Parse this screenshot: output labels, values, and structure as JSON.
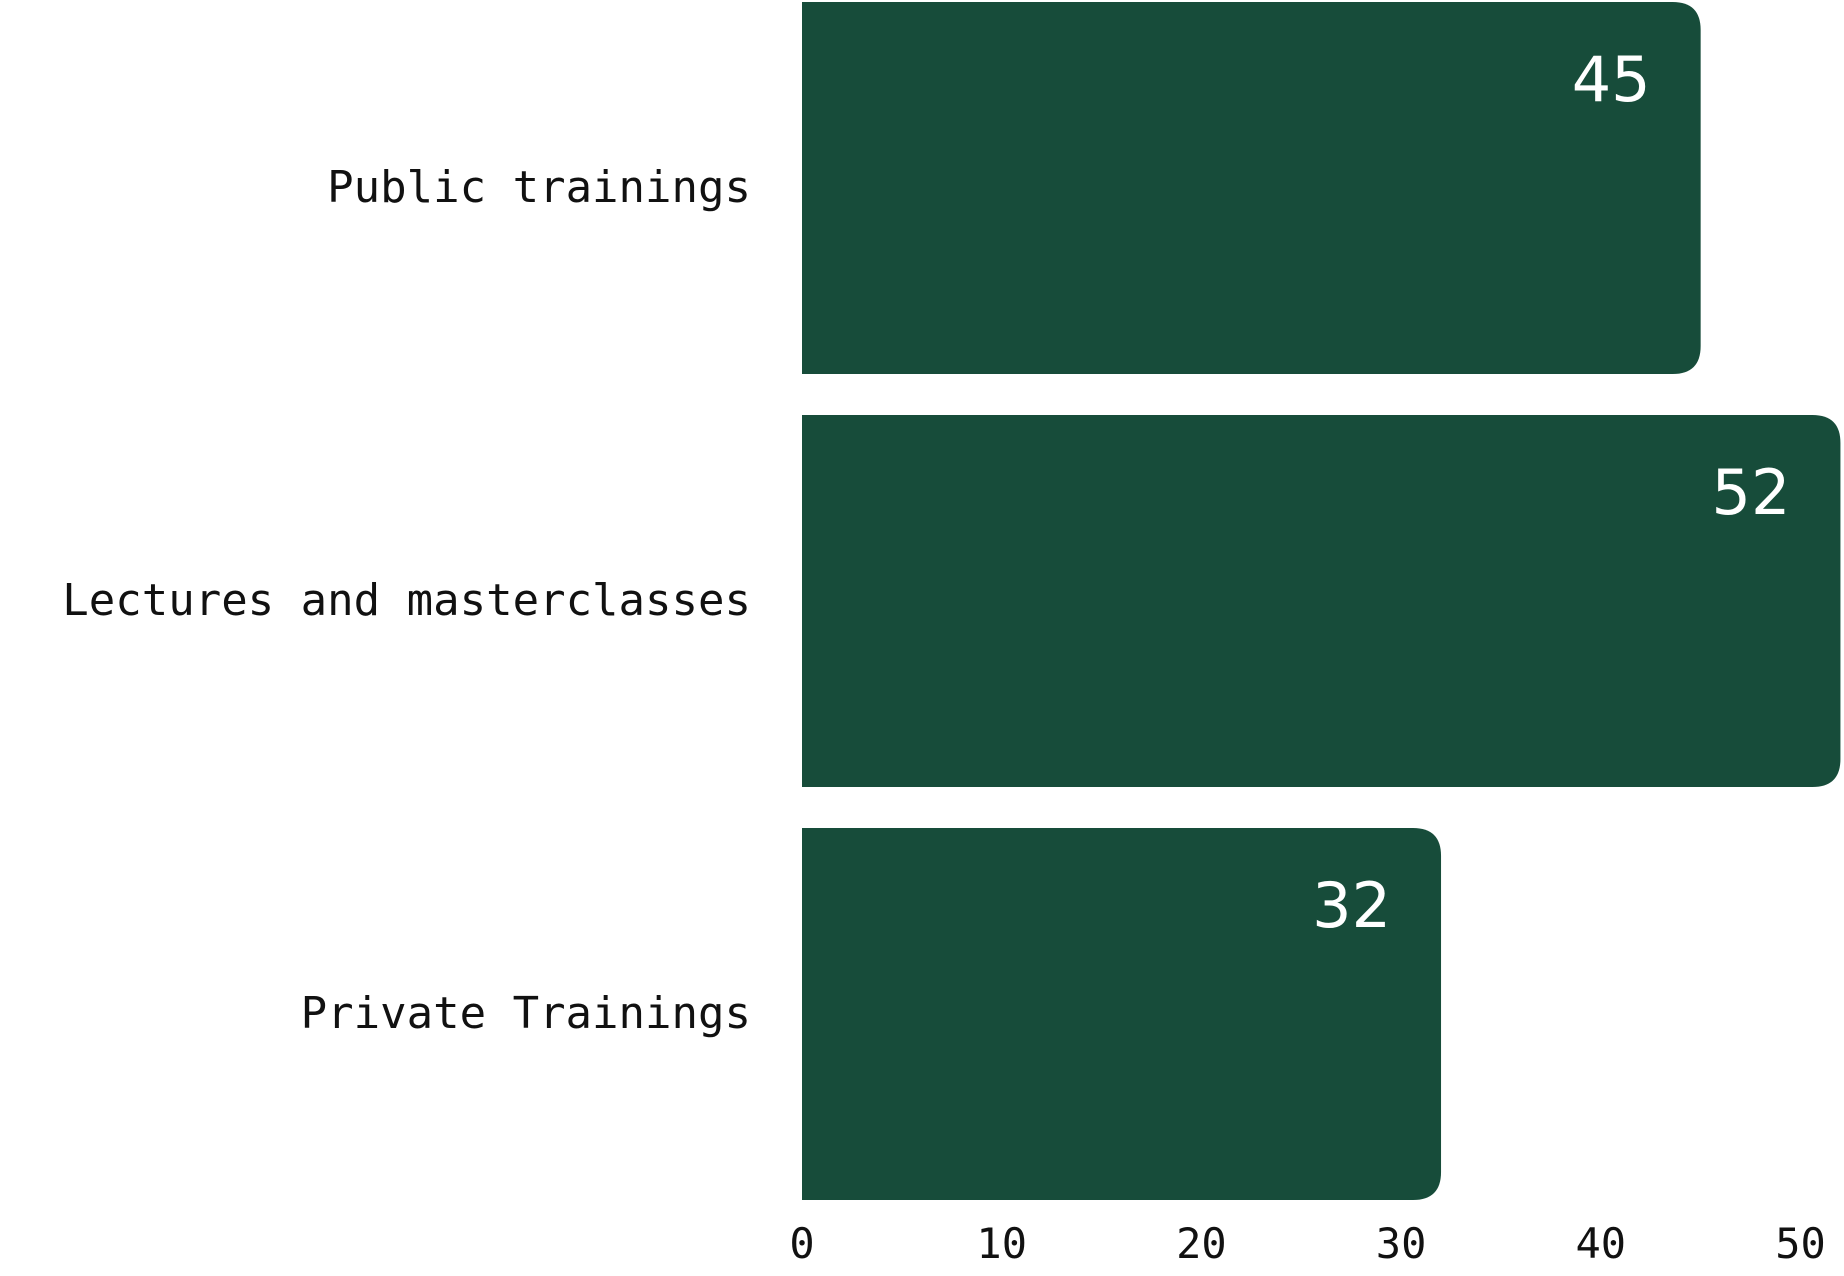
{
  "chart_data": {
    "type": "bar",
    "orientation": "horizontal",
    "categories": [
      "Public trainings",
      "Lectures and masterclasses",
      "Private Trainings"
    ],
    "values": [
      45,
      52,
      32
    ],
    "data_labels": [
      "45",
      "52",
      "32"
    ],
    "x_ticks": [
      "0",
      "10",
      "20",
      "30",
      "40",
      "50"
    ],
    "xlim": [
      0,
      52
    ],
    "title": "",
    "xlabel": "",
    "ylabel": "",
    "grid": false,
    "legend": "none"
  },
  "colors": {
    "bar": "#174c3a",
    "bar_label": "#ffffff",
    "text": "#111111",
    "background": "#ffffff"
  }
}
